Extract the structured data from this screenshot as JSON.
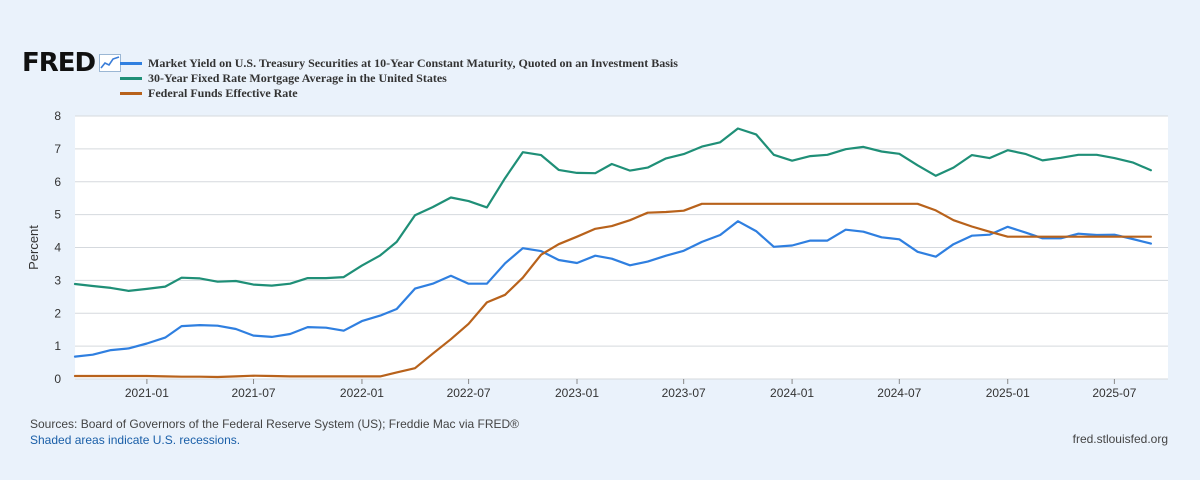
{
  "brand": {
    "name": "FRED",
    "icon": "line-chart-icon"
  },
  "footer": {
    "sources": "Sources: Board of Governors of the Federal Reserve System (US); Freddie Mac via FRED®",
    "shading_note": "Shaded areas indicate U.S. recessions.",
    "site": "fred.stlouisfed.org"
  },
  "colors": {
    "background": "#eaf2fb",
    "plot": "#ffffff",
    "grid": "#d5d9de",
    "axis_text": "#333333"
  },
  "chart_data": {
    "type": "line",
    "title": "",
    "xlabel": "",
    "ylabel": "Percent",
    "xlim": [
      "2020-09-01",
      "2025-09-30"
    ],
    "ylim": [
      0,
      8
    ],
    "y_ticks": [
      0,
      1,
      2,
      3,
      4,
      5,
      6,
      7,
      8
    ],
    "x_ticks": [
      "2021-01",
      "2021-07",
      "2022-01",
      "2022-07",
      "2023-01",
      "2023-07",
      "2024-01",
      "2024-07",
      "2025-01",
      "2025-07"
    ],
    "grid": true,
    "legend_position": "top-left",
    "series": [
      {
        "name": "Market Yield on U.S. Treasury Securities at 10-Year Constant Maturity, Quoted on an Investment Basis",
        "color": "#2f7fe0",
        "points": [
          [
            "2020-09-01",
            0.68
          ],
          [
            "2020-10-01",
            0.74
          ],
          [
            "2020-11-01",
            0.88
          ],
          [
            "2020-12-01",
            0.93
          ],
          [
            "2021-01-01",
            1.08
          ],
          [
            "2021-02-01",
            1.26
          ],
          [
            "2021-03-01",
            1.61
          ],
          [
            "2021-04-01",
            1.64
          ],
          [
            "2021-05-01",
            1.62
          ],
          [
            "2021-06-01",
            1.52
          ],
          [
            "2021-07-01",
            1.32
          ],
          [
            "2021-08-01",
            1.28
          ],
          [
            "2021-09-01",
            1.37
          ],
          [
            "2021-10-01",
            1.58
          ],
          [
            "2021-11-01",
            1.56
          ],
          [
            "2021-12-01",
            1.47
          ],
          [
            "2022-01-01",
            1.76
          ],
          [
            "2022-02-01",
            1.93
          ],
          [
            "2022-03-01",
            2.13
          ],
          [
            "2022-04-01",
            2.75
          ],
          [
            "2022-05-01",
            2.9
          ],
          [
            "2022-06-01",
            3.14
          ],
          [
            "2022-07-01",
            2.9
          ],
          [
            "2022-08-01",
            2.9
          ],
          [
            "2022-09-01",
            3.52
          ],
          [
            "2022-10-01",
            3.98
          ],
          [
            "2022-11-01",
            3.89
          ],
          [
            "2022-12-01",
            3.62
          ],
          [
            "2023-01-01",
            3.53
          ],
          [
            "2023-02-01",
            3.75
          ],
          [
            "2023-03-01",
            3.66
          ],
          [
            "2023-04-01",
            3.46
          ],
          [
            "2023-05-01",
            3.57
          ],
          [
            "2023-06-01",
            3.75
          ],
          [
            "2023-07-01",
            3.9
          ],
          [
            "2023-08-01",
            4.17
          ],
          [
            "2023-09-01",
            4.38
          ],
          [
            "2023-10-01",
            4.8
          ],
          [
            "2023-11-01",
            4.5
          ],
          [
            "2023-12-01",
            4.02
          ],
          [
            "2024-01-01",
            4.06
          ],
          [
            "2024-02-01",
            4.21
          ],
          [
            "2024-03-01",
            4.21
          ],
          [
            "2024-04-01",
            4.54
          ],
          [
            "2024-05-01",
            4.48
          ],
          [
            "2024-06-01",
            4.31
          ],
          [
            "2024-07-01",
            4.25
          ],
          [
            "2024-08-01",
            3.87
          ],
          [
            "2024-09-01",
            3.72
          ],
          [
            "2024-10-01",
            4.1
          ],
          [
            "2024-11-01",
            4.36
          ],
          [
            "2024-12-01",
            4.39
          ],
          [
            "2025-01-01",
            4.63
          ],
          [
            "2025-02-01",
            4.45
          ],
          [
            "2025-03-01",
            4.28
          ],
          [
            "2025-04-01",
            4.28
          ],
          [
            "2025-05-01",
            4.42
          ],
          [
            "2025-06-01",
            4.38
          ],
          [
            "2025-07-01",
            4.39
          ],
          [
            "2025-08-01",
            4.26
          ],
          [
            "2025-09-01",
            4.12
          ]
        ]
      },
      {
        "name": "30-Year Fixed Rate Mortgage Average in the United States",
        "color": "#1f8f77",
        "points": [
          [
            "2020-09-01",
            2.89
          ],
          [
            "2020-10-01",
            2.83
          ],
          [
            "2020-11-01",
            2.77
          ],
          [
            "2020-12-01",
            2.68
          ],
          [
            "2021-01-01",
            2.74
          ],
          [
            "2021-02-01",
            2.81
          ],
          [
            "2021-03-01",
            3.08
          ],
          [
            "2021-04-01",
            3.06
          ],
          [
            "2021-05-01",
            2.96
          ],
          [
            "2021-06-01",
            2.98
          ],
          [
            "2021-07-01",
            2.87
          ],
          [
            "2021-08-01",
            2.84
          ],
          [
            "2021-09-01",
            2.9
          ],
          [
            "2021-10-01",
            3.07
          ],
          [
            "2021-11-01",
            3.07
          ],
          [
            "2021-12-01",
            3.1
          ],
          [
            "2022-01-01",
            3.45
          ],
          [
            "2022-02-01",
            3.76
          ],
          [
            "2022-03-01",
            4.17
          ],
          [
            "2022-04-01",
            4.98
          ],
          [
            "2022-05-01",
            5.23
          ],
          [
            "2022-06-01",
            5.52
          ],
          [
            "2022-07-01",
            5.41
          ],
          [
            "2022-08-01",
            5.22
          ],
          [
            "2022-09-01",
            6.11
          ],
          [
            "2022-10-01",
            6.9
          ],
          [
            "2022-11-01",
            6.81
          ],
          [
            "2022-12-01",
            6.36
          ],
          [
            "2023-01-01",
            6.27
          ],
          [
            "2023-02-01",
            6.26
          ],
          [
            "2023-03-01",
            6.54
          ],
          [
            "2023-04-01",
            6.34
          ],
          [
            "2023-05-01",
            6.43
          ],
          [
            "2023-06-01",
            6.71
          ],
          [
            "2023-07-01",
            6.84
          ],
          [
            "2023-08-01",
            7.07
          ],
          [
            "2023-09-01",
            7.2
          ],
          [
            "2023-10-01",
            7.62
          ],
          [
            "2023-11-01",
            7.44
          ],
          [
            "2023-12-01",
            6.82
          ],
          [
            "2024-01-01",
            6.64
          ],
          [
            "2024-02-01",
            6.78
          ],
          [
            "2024-03-01",
            6.82
          ],
          [
            "2024-04-01",
            6.99
          ],
          [
            "2024-05-01",
            7.06
          ],
          [
            "2024-06-01",
            6.92
          ],
          [
            "2024-07-01",
            6.85
          ],
          [
            "2024-08-01",
            6.5
          ],
          [
            "2024-09-01",
            6.18
          ],
          [
            "2024-10-01",
            6.43
          ],
          [
            "2024-11-01",
            6.81
          ],
          [
            "2024-12-01",
            6.72
          ],
          [
            "2025-01-01",
            6.96
          ],
          [
            "2025-02-01",
            6.84
          ],
          [
            "2025-03-01",
            6.65
          ],
          [
            "2025-04-01",
            6.73
          ],
          [
            "2025-05-01",
            6.82
          ],
          [
            "2025-06-01",
            6.82
          ],
          [
            "2025-07-01",
            6.72
          ],
          [
            "2025-08-01",
            6.59
          ],
          [
            "2025-09-01",
            6.35
          ]
        ]
      },
      {
        "name": "Federal Funds Effective Rate",
        "color": "#b8621b",
        "points": [
          [
            "2020-09-01",
            0.09
          ],
          [
            "2020-10-01",
            0.09
          ],
          [
            "2020-11-01",
            0.09
          ],
          [
            "2020-12-01",
            0.09
          ],
          [
            "2021-01-01",
            0.09
          ],
          [
            "2021-02-01",
            0.08
          ],
          [
            "2021-03-01",
            0.07
          ],
          [
            "2021-04-01",
            0.07
          ],
          [
            "2021-05-01",
            0.06
          ],
          [
            "2021-06-01",
            0.08
          ],
          [
            "2021-07-01",
            0.1
          ],
          [
            "2021-08-01",
            0.09
          ],
          [
            "2021-09-01",
            0.08
          ],
          [
            "2021-10-01",
            0.08
          ],
          [
            "2021-11-01",
            0.08
          ],
          [
            "2021-12-01",
            0.08
          ],
          [
            "2022-01-01",
            0.08
          ],
          [
            "2022-02-01",
            0.08
          ],
          [
            "2022-03-01",
            0.2
          ],
          [
            "2022-04-01",
            0.33
          ],
          [
            "2022-05-01",
            0.77
          ],
          [
            "2022-06-01",
            1.21
          ],
          [
            "2022-07-01",
            1.68
          ],
          [
            "2022-08-01",
            2.33
          ],
          [
            "2022-09-01",
            2.56
          ],
          [
            "2022-10-01",
            3.08
          ],
          [
            "2022-11-01",
            3.78
          ],
          [
            "2022-12-01",
            4.1
          ],
          [
            "2023-01-01",
            4.33
          ],
          [
            "2023-02-01",
            4.57
          ],
          [
            "2023-03-01",
            4.65
          ],
          [
            "2023-04-01",
            4.83
          ],
          [
            "2023-05-01",
            5.06
          ],
          [
            "2023-06-01",
            5.08
          ],
          [
            "2023-07-01",
            5.12
          ],
          [
            "2023-08-01",
            5.33
          ],
          [
            "2023-09-01",
            5.33
          ],
          [
            "2023-10-01",
            5.33
          ],
          [
            "2023-11-01",
            5.33
          ],
          [
            "2023-12-01",
            5.33
          ],
          [
            "2024-01-01",
            5.33
          ],
          [
            "2024-02-01",
            5.33
          ],
          [
            "2024-03-01",
            5.33
          ],
          [
            "2024-04-01",
            5.33
          ],
          [
            "2024-05-01",
            5.33
          ],
          [
            "2024-06-01",
            5.33
          ],
          [
            "2024-07-01",
            5.33
          ],
          [
            "2024-08-01",
            5.33
          ],
          [
            "2024-09-01",
            5.13
          ],
          [
            "2024-10-01",
            4.83
          ],
          [
            "2024-11-01",
            4.64
          ],
          [
            "2024-12-01",
            4.48
          ],
          [
            "2025-01-01",
            4.33
          ],
          [
            "2025-02-01",
            4.33
          ],
          [
            "2025-03-01",
            4.33
          ],
          [
            "2025-04-01",
            4.33
          ],
          [
            "2025-05-01",
            4.33
          ],
          [
            "2025-06-01",
            4.33
          ],
          [
            "2025-07-01",
            4.33
          ],
          [
            "2025-08-01",
            4.33
          ],
          [
            "2025-09-01",
            4.33
          ]
        ]
      }
    ]
  }
}
